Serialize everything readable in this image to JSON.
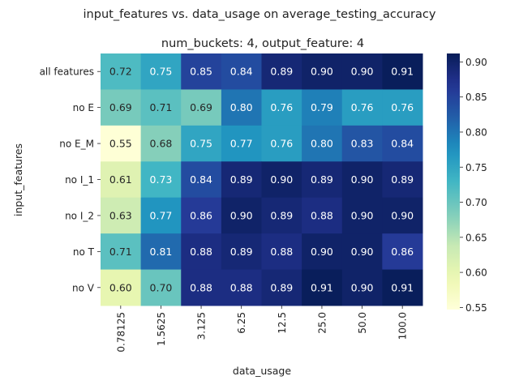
{
  "chart_data": {
    "type": "heatmap",
    "title": "input_features vs. data_usage on average_testing_accuracy",
    "subtitle": "num_buckets: 4, output_feature: 4",
    "xlabel": "data_usage",
    "ylabel": "input_features",
    "x": [
      "0.78125",
      "1.5625",
      "3.125",
      "6.25",
      "12.5",
      "25.0",
      "50.0",
      "100.0"
    ],
    "y": [
      "all features",
      "no E",
      "no E_M",
      "no I_1",
      "no I_2",
      "no T",
      "no V"
    ],
    "values": [
      [
        0.72,
        0.75,
        0.85,
        0.84,
        0.89,
        0.9,
        0.9,
        0.91
      ],
      [
        0.69,
        0.71,
        0.69,
        0.8,
        0.76,
        0.79,
        0.76,
        0.76
      ],
      [
        0.55,
        0.68,
        0.75,
        0.77,
        0.76,
        0.8,
        0.83,
        0.84
      ],
      [
        0.61,
        0.73,
        0.84,
        0.89,
        0.9,
        0.89,
        0.9,
        0.89
      ],
      [
        0.63,
        0.77,
        0.86,
        0.9,
        0.89,
        0.88,
        0.9,
        0.9
      ],
      [
        0.71,
        0.81,
        0.88,
        0.89,
        0.88,
        0.9,
        0.9,
        0.86
      ],
      [
        0.6,
        0.7,
        0.88,
        0.88,
        0.89,
        0.91,
        0.9,
        0.91
      ]
    ],
    "colormap": "YlGnBu",
    "value_range": [
      0.547,
      0.912
    ],
    "colorbar_ticks": [
      0.55,
      0.6,
      0.65,
      0.7,
      0.75,
      0.8,
      0.85,
      0.9
    ],
    "annotations_format": "0.00",
    "legend": "colorbar-right"
  }
}
